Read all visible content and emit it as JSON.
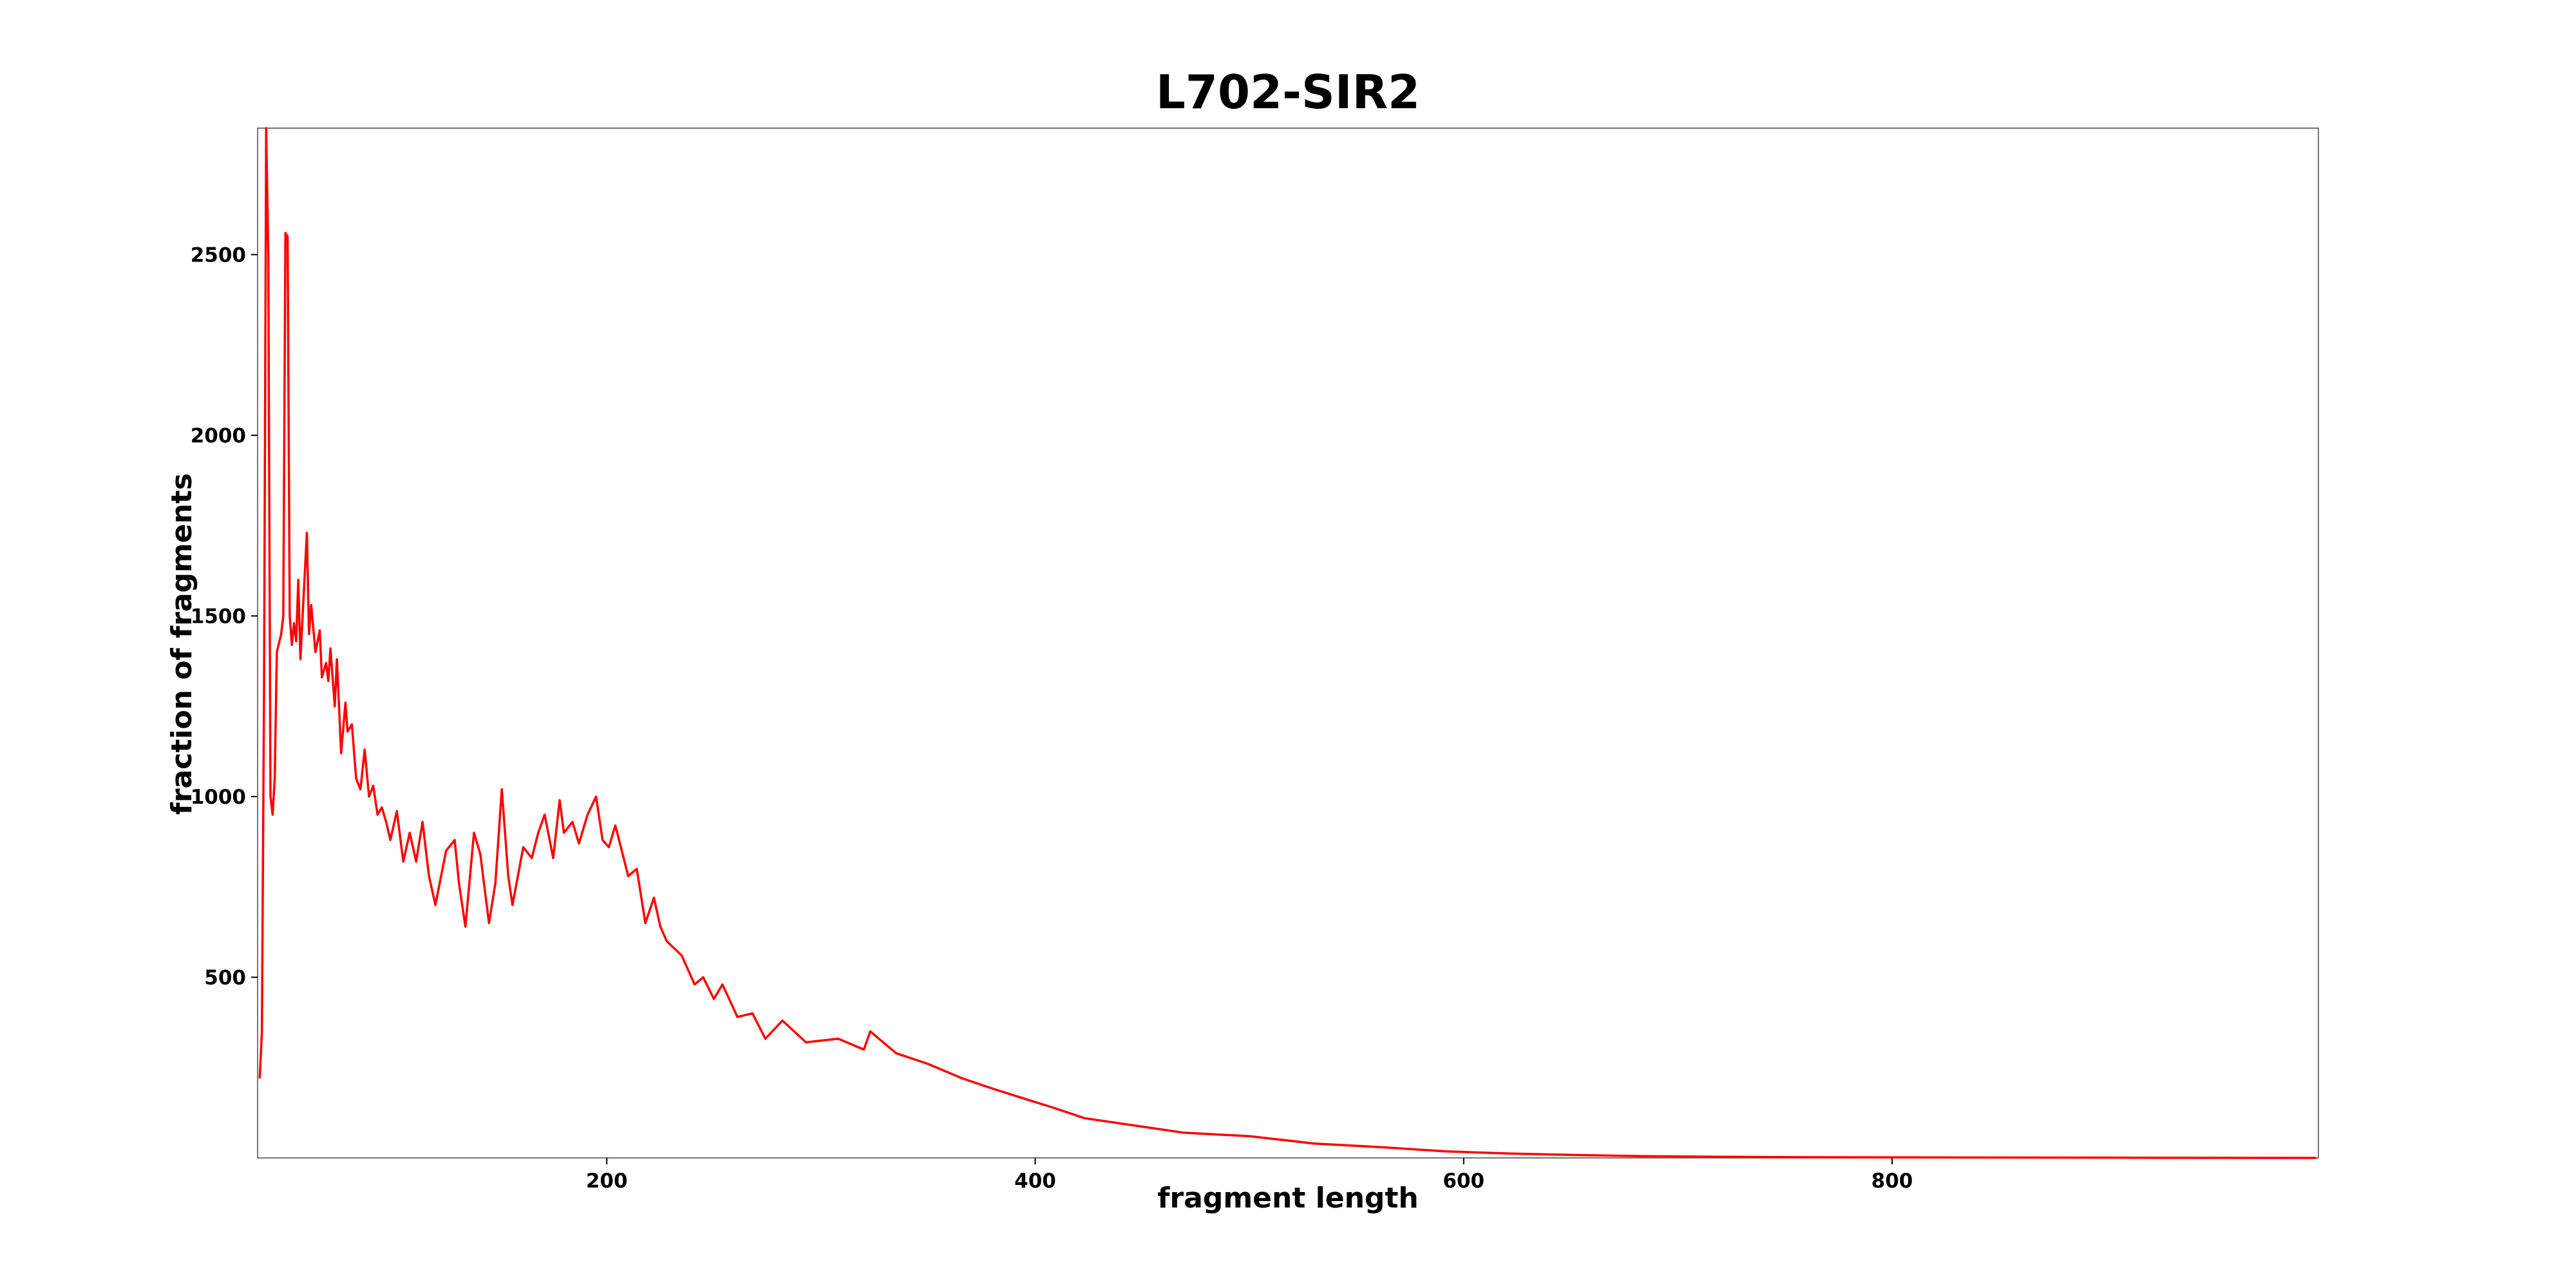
{
  "chart_data": {
    "type": "line",
    "title": "L702-SIR2",
    "xlabel": "fragment length",
    "ylabel": "fraction of fragments",
    "color": "#ff0000",
    "x": [
      38,
      39,
      40,
      41,
      42,
      43,
      44,
      45,
      46,
      48,
      49,
      50,
      51,
      52,
      53,
      54,
      55,
      56,
      57,
      58,
      60,
      61,
      62,
      64,
      66,
      67,
      69,
      70,
      71,
      73,
      74,
      76,
      78,
      79,
      81,
      83,
      85,
      87,
      89,
      91,
      93,
      95,
      97,
      99,
      102,
      105,
      108,
      111,
      114,
      117,
      120,
      122,
      125,
      129,
      131,
      134,
      138,
      141,
      145,
      148,
      151,
      154,
      156,
      161,
      165,
      168,
      171,
      175,
      178,
      180,
      184,
      187,
      191,
      195,
      198,
      201,
      204,
      207,
      210,
      214,
      218,
      222,
      225,
      228,
      235,
      241,
      245,
      250,
      254,
      261,
      268,
      274,
      282,
      293,
      308,
      320,
      323,
      335,
      350,
      366,
      381,
      397,
      408,
      423,
      446,
      469,
      500,
      530,
      561,
      592,
      622,
      653,
      683,
      721,
      760,
      837,
      913,
      998
    ],
    "values": [
      220,
      350,
      1300,
      2850,
      2500,
      1000,
      950,
      1050,
      1400,
      1450,
      1500,
      2560,
      2550,
      1500,
      1420,
      1480,
      1430,
      1600,
      1380,
      1500,
      1730,
      1450,
      1530,
      1400,
      1460,
      1330,
      1370,
      1320,
      1410,
      1250,
      1380,
      1120,
      1260,
      1180,
      1200,
      1050,
      1020,
      1130,
      1000,
      1030,
      950,
      970,
      930,
      880,
      960,
      820,
      900,
      820,
      930,
      780,
      700,
      760,
      850,
      880,
      760,
      640,
      900,
      840,
      650,
      760,
      1020,
      780,
      700,
      860,
      830,
      900,
      950,
      830,
      990,
      900,
      930,
      870,
      950,
      1000,
      880,
      860,
      920,
      850,
      780,
      800,
      650,
      720,
      640,
      600,
      560,
      480,
      500,
      440,
      480,
      390,
      400,
      330,
      380,
      320,
      330,
      300,
      350,
      290,
      260,
      220,
      190,
      160,
      140,
      110,
      90,
      70,
      60,
      40,
      30,
      18,
      12,
      8,
      5,
      3,
      2,
      1,
      0.5,
      0
    ],
    "xlim": [
      37,
      999
    ],
    "ylim": [
      0,
      2850
    ],
    "xticks": [
      200,
      400,
      600,
      800
    ],
    "yticks": [
      500,
      1000,
      1500,
      2000,
      2500
    ]
  }
}
